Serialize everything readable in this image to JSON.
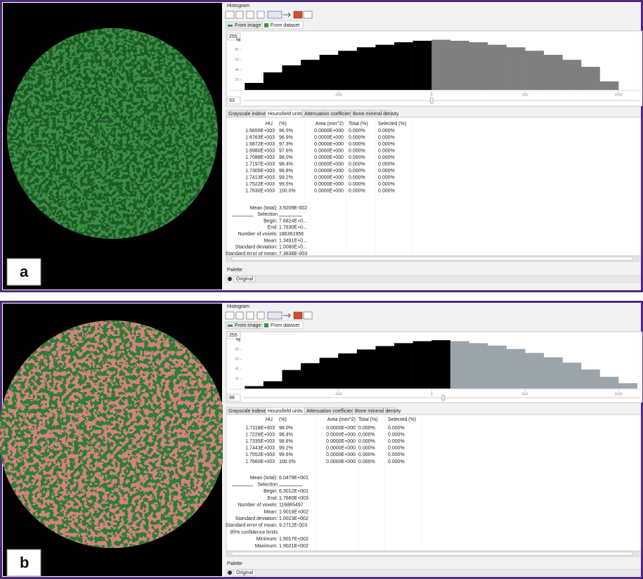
{
  "panels": [
    {
      "label": "a",
      "histogram_title": "Histogram",
      "source_tabs": [
        "From image",
        "From dataset"
      ],
      "top_value": "255",
      "bottom_value": "93",
      "chart": {
        "type": "histogram",
        "y_label": "%",
        "bins": [
          -1000,
          -900,
          -800,
          -700,
          -600,
          -500,
          -400,
          -300,
          -200,
          -100,
          0,
          100,
          200,
          300,
          400,
          500,
          600,
          700,
          800,
          900,
          1000
        ],
        "counts": [
          14,
          35,
          49,
          60,
          70,
          78,
          85,
          90,
          95,
          98,
          100,
          98,
          95,
          90,
          85,
          78,
          70,
          60,
          46,
          17
        ],
        "xlim": [
          -1080,
          1120
        ],
        "ylim": [
          0,
          105
        ],
        "xticks": [
          -500,
          0,
          500,
          1000
        ],
        "yticks": [
          20,
          40,
          60,
          80
        ],
        "split": 0,
        "below_color": "#000000",
        "above_color": "#7f7f7f"
      },
      "unit_tabs": [
        "Grayscale indexes",
        "Hounsfield units",
        "Attenuation coefficient",
        "Bone mineral density"
      ],
      "table": {
        "header": [
          "HU",
          "(%)",
          "Area (mm^2)",
          "Total (%)",
          "Selected (%)"
        ],
        "rows": [
          [
            "1.6655E+003",
            "96.5%",
            "0.0000E+000",
            "0.000%",
            "0.000%"
          ],
          [
            "1.6763E+003",
            "96.9%",
            "0.0000E+000",
            "0.000%",
            "0.000%"
          ],
          [
            "1.6872E+003",
            "97.3%",
            "0.0000E+000",
            "0.000%",
            "0.000%"
          ],
          [
            "1.6980E+003",
            "97.6%",
            "0.0000E+000",
            "0.000%",
            "0.000%"
          ],
          [
            "1.7088E+003",
            "98.0%",
            "0.0000E+000",
            "0.000%",
            "0.000%"
          ],
          [
            "1.7197E+003",
            "98.4%",
            "0.0000E+000",
            "0.000%",
            "0.000%"
          ],
          [
            "1.7305E+003",
            "98.8%",
            "0.0000E+000",
            "0.000%",
            "0.000%"
          ],
          [
            "1.7413E+003",
            "99.2%",
            "0.0000E+000",
            "0.000%",
            "0.000%"
          ],
          [
            "1.7522E+003",
            "99.6%",
            "0.0000E+000",
            "0.000%",
            "0.000%"
          ],
          [
            "1.7630E+003",
            "100.0%",
            "0.0000E+000",
            "0.000%",
            "0.000%"
          ]
        ]
      },
      "stats": [
        [
          "Mean (total):",
          "3.9209E-002"
        ],
        [
          "Selection"
        ],
        [
          "Begin:",
          "7.6824E+0..."
        ],
        [
          "End:",
          "1.7630E+0..."
        ],
        [
          "Number of voxels:",
          "186361958"
        ],
        [
          "Mean:",
          "1.3491E+0..."
        ],
        [
          "Standard deviation:",
          "1.0080E+0..."
        ],
        [
          "Standard error of mean:",
          "7.3838E-003"
        ]
      ],
      "palette_title": "Palette",
      "palette_item": "Original"
    },
    {
      "label": "b",
      "histogram_title": "Histogram",
      "source_tabs": [
        "From image",
        "From dataset"
      ],
      "top_value": "255",
      "bottom_value": "98",
      "chart": {
        "type": "histogram",
        "y_label": "%",
        "bins": [
          -1000,
          -900,
          -800,
          -700,
          -600,
          -500,
          -400,
          -300,
          -200,
          -100,
          0,
          100,
          200,
          300,
          400,
          500,
          600,
          700,
          800,
          900,
          1000,
          1100
        ],
        "counts": [
          5,
          15,
          38,
          52,
          63,
          72,
          80,
          87,
          93,
          97,
          99,
          97,
          93,
          88,
          81,
          73,
          64,
          53,
          39,
          24,
          11
        ],
        "xlim": [
          -1080,
          1120
        ],
        "ylim": [
          0,
          105
        ],
        "xticks": [
          -500,
          0,
          500,
          1000
        ],
        "yticks": [
          20,
          40,
          60,
          80
        ],
        "split": 63,
        "below_color": "#000000",
        "above_color": "#9ba4a8"
      },
      "unit_tabs": [
        "Grayscale indexes",
        "Hounsfield units",
        "Attenuation coefficient",
        "Bone mineral density"
      ],
      "table": {
        "header": [
          "HU",
          "(%)",
          "Area (mm^2)",
          "Total (%)",
          "Selected (%)"
        ],
        "rows": [
          [
            "1.7118E+003",
            "98.0%",
            "0.0000E+000",
            "0.000%",
            "0.000%"
          ],
          [
            "1.7226E+003",
            "98.4%",
            "0.0000E+000",
            "0.000%",
            "0.000%"
          ],
          [
            "1.7335E+003",
            "98.8%",
            "0.0000E+000",
            "0.000%",
            "0.000%"
          ],
          [
            "1.7443E+003",
            "99.2%",
            "0.0000E+000",
            "0.000%",
            "0.000%"
          ],
          [
            "1.7552E+003",
            "99.6%",
            "0.0000E+000",
            "0.000%",
            "0.000%"
          ],
          [
            "1.7660E+003",
            "100.0%",
            "0.0000E+000",
            "0.000%",
            "0.000%"
          ]
        ]
      },
      "stats": [
        [
          "Mean (total):",
          "6.0479E+001"
        ],
        [
          "Selection"
        ],
        [
          "Begin:",
          "6.3012E+001"
        ],
        [
          "End:",
          "1.7660E+003"
        ],
        [
          "Number of voxels:",
          "116865497"
        ],
        [
          "Mean:",
          "1.9019E+002"
        ],
        [
          "Standard deviation:",
          "1.0023E+002"
        ],
        [
          "Standard error of mean:",
          "9.2712E-003"
        ],
        [
          "95% confidence limits"
        ],
        [
          "Minimum:",
          "1.9017E+002"
        ],
        [
          "Maximum:",
          "1.9021E+002"
        ]
      ],
      "palette_title": "Palette",
      "palette_item": "Original"
    }
  ]
}
